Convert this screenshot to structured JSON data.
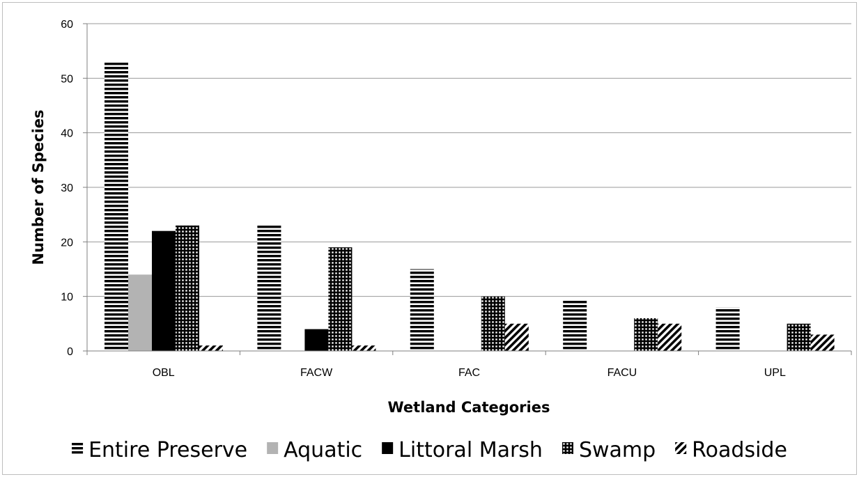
{
  "chart_data": {
    "type": "bar",
    "title": "",
    "xlabel": "Wetland Categories",
    "ylabel": "Number of Species",
    "ylim": [
      0,
      60
    ],
    "yticks": [
      0,
      10,
      20,
      30,
      40,
      50,
      60
    ],
    "grid": true,
    "legend_position": "bottom",
    "categories": [
      "OBL",
      "FACW",
      "FAC",
      "FACU",
      "UPL"
    ],
    "series": [
      {
        "name": "Entire Preserve",
        "pattern": "horizontal-stripes",
        "color": "#000000",
        "values": [
          53,
          23,
          15,
          9.5,
          8
        ]
      },
      {
        "name": "Aquatic",
        "pattern": "solid",
        "color": "#b3b3b3",
        "values": [
          14,
          0,
          0,
          0,
          0
        ]
      },
      {
        "name": "Littoral Marsh",
        "pattern": "solid",
        "color": "#000000",
        "values": [
          22,
          4,
          0,
          0,
          0
        ]
      },
      {
        "name": "Swamp",
        "pattern": "grid",
        "color": "#000000",
        "values": [
          23,
          19,
          10,
          6,
          5
        ]
      },
      {
        "name": "Roadside",
        "pattern": "diagonal-stripes",
        "color": "#000000",
        "values": [
          1,
          1,
          5,
          5,
          3
        ]
      }
    ]
  }
}
